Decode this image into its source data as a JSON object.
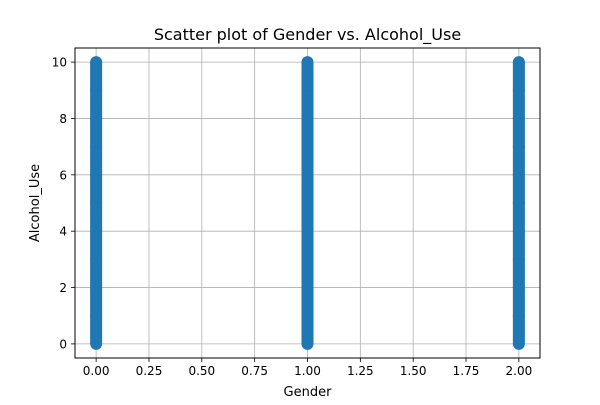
{
  "chart_data": {
    "type": "scatter",
    "title": "Scatter plot of Gender vs. Alcohol_Use",
    "xlabel": "Gender",
    "ylabel": "Alcohol_Use",
    "xlim": [
      -0.1,
      2.1
    ],
    "ylim": [
      -0.5,
      10.5
    ],
    "xticks": [
      0,
      0.25,
      0.5,
      0.75,
      1,
      1.25,
      1.5,
      1.75,
      2
    ],
    "xtick_labels": [
      "0.00",
      "0.25",
      "0.50",
      "0.75",
      "1.00",
      "1.25",
      "1.50",
      "1.75",
      "2.00"
    ],
    "yticks": [
      0,
      2,
      4,
      6,
      8,
      10
    ],
    "ytick_labels": [
      "0",
      "2",
      "4",
      "6",
      "8",
      "10"
    ],
    "grid": true,
    "series": [
      {
        "color": "#1f77b4",
        "x": [
          0,
          0,
          0,
          0,
          0,
          0,
          0,
          0,
          0,
          0,
          0,
          1,
          1,
          1,
          1,
          1,
          1,
          1,
          1,
          1,
          1,
          1,
          2,
          2,
          2,
          2,
          2,
          2,
          2,
          2,
          2,
          2,
          2
        ],
        "y": [
          0,
          1,
          2,
          3,
          4,
          5,
          6,
          7,
          8,
          9,
          10,
          0,
          1,
          2,
          3,
          4,
          5,
          6,
          7,
          8,
          9,
          10,
          0,
          1,
          2,
          3,
          4,
          5,
          6,
          7,
          8,
          9,
          10
        ]
      }
    ]
  }
}
